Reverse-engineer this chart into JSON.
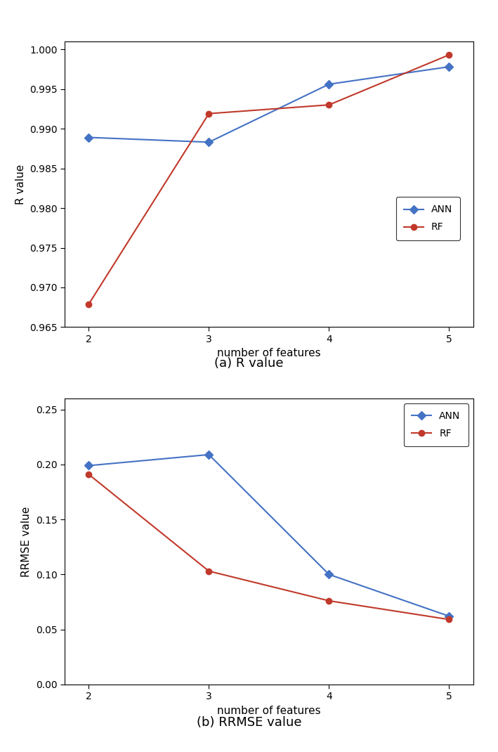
{
  "x": [
    2,
    3,
    4,
    5
  ],
  "ann_R": [
    0.9889,
    0.9883,
    0.9956,
    0.9978
  ],
  "rf_R": [
    0.9679,
    0.9919,
    0.993,
    0.9993
  ],
  "ann_RRMSE": [
    0.199,
    0.209,
    0.1,
    0.062
  ],
  "rf_RRMSE": [
    0.191,
    0.103,
    0.076,
    0.059
  ],
  "ann_color": "#4472C4",
  "rf_color": "#C0392B",
  "marker_ann": "D",
  "marker_rf": "o",
  "markersize": 6,
  "linewidth": 1.5,
  "xlabel": "number of features",
  "ylabel_R": "R value",
  "ylabel_RRMSE": "RRMSE value",
  "caption_R": "(a) R value",
  "caption_RRMSE": "(b) RRMSE value",
  "ylim_R": [
    0.965,
    1.001
  ],
  "yticks_R": [
    0.965,
    0.97,
    0.975,
    0.98,
    0.985,
    0.99,
    0.995,
    1.0
  ],
  "ylim_RRMSE": [
    0.0,
    0.26
  ],
  "yticks_RRMSE": [
    0.0,
    0.05,
    0.1,
    0.15,
    0.2,
    0.25
  ],
  "xticks": [
    2,
    3,
    4,
    5
  ],
  "legend_labels": [
    "ANN",
    "RF"
  ],
  "bg_color": "#FFFFFF",
  "caption_fontsize": 13,
  "axis_fontsize": 11,
  "tick_fontsize": 10
}
